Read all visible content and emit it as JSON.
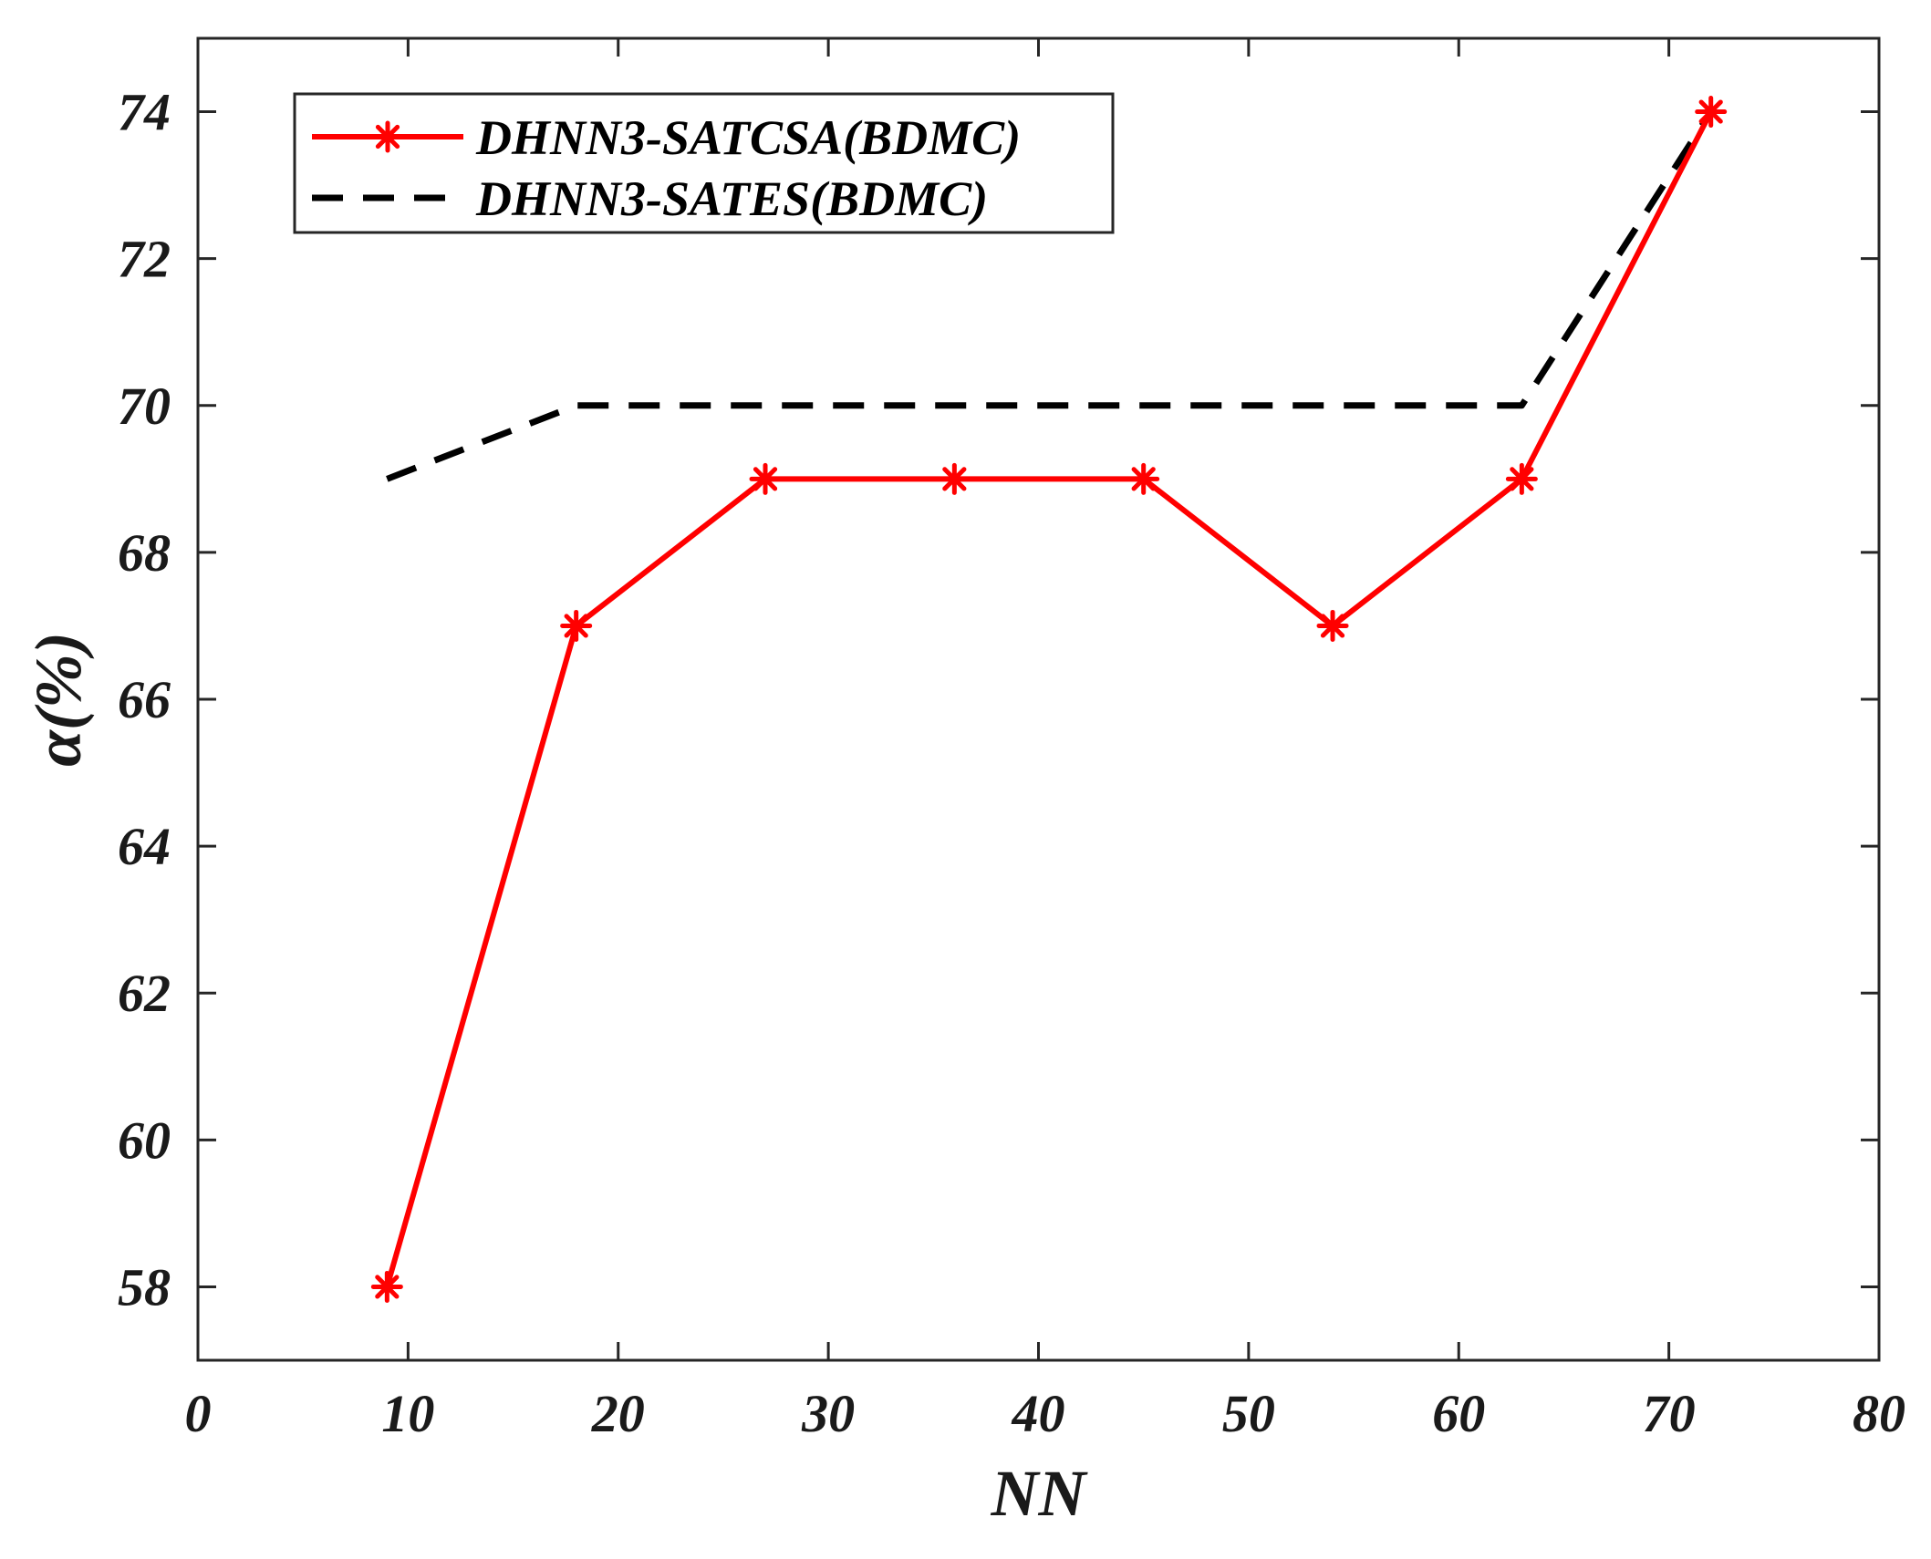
{
  "chart_data": {
    "type": "line",
    "xlabel": "NN",
    "ylabel": "α(%)",
    "xlim": [
      0,
      80
    ],
    "ylim": [
      57,
      75
    ],
    "xticks": [
      0,
      10,
      20,
      30,
      40,
      50,
      60,
      70,
      80
    ],
    "yticks": [
      58,
      60,
      62,
      64,
      66,
      68,
      70,
      72,
      74
    ],
    "xtick_labels": [
      "0",
      "10",
      "20",
      "30",
      "40",
      "50",
      "60",
      "70",
      "80"
    ],
    "ytick_labels": [
      "58",
      "60",
      "62",
      "64",
      "66",
      "68",
      "70",
      "72",
      "74"
    ],
    "grid": false,
    "legend_position": "top-left",
    "series": [
      {
        "name": "DHNN3-SATCSA(BDMC)",
        "color": "#ff0000",
        "line_style": "solid",
        "marker": "asterisk",
        "x": [
          9,
          18,
          27,
          36,
          45,
          54,
          63,
          72
        ],
        "y": [
          58,
          67,
          69,
          69,
          69,
          67,
          69,
          74
        ]
      },
      {
        "name": "DHNN3-SATES(BDMC)",
        "color": "#000000",
        "line_style": "dashed",
        "marker": "none",
        "x": [
          9,
          18,
          27,
          36,
          45,
          54,
          63,
          72
        ],
        "y": [
          69,
          70,
          70,
          70,
          70,
          70,
          70,
          74
        ]
      }
    ]
  }
}
